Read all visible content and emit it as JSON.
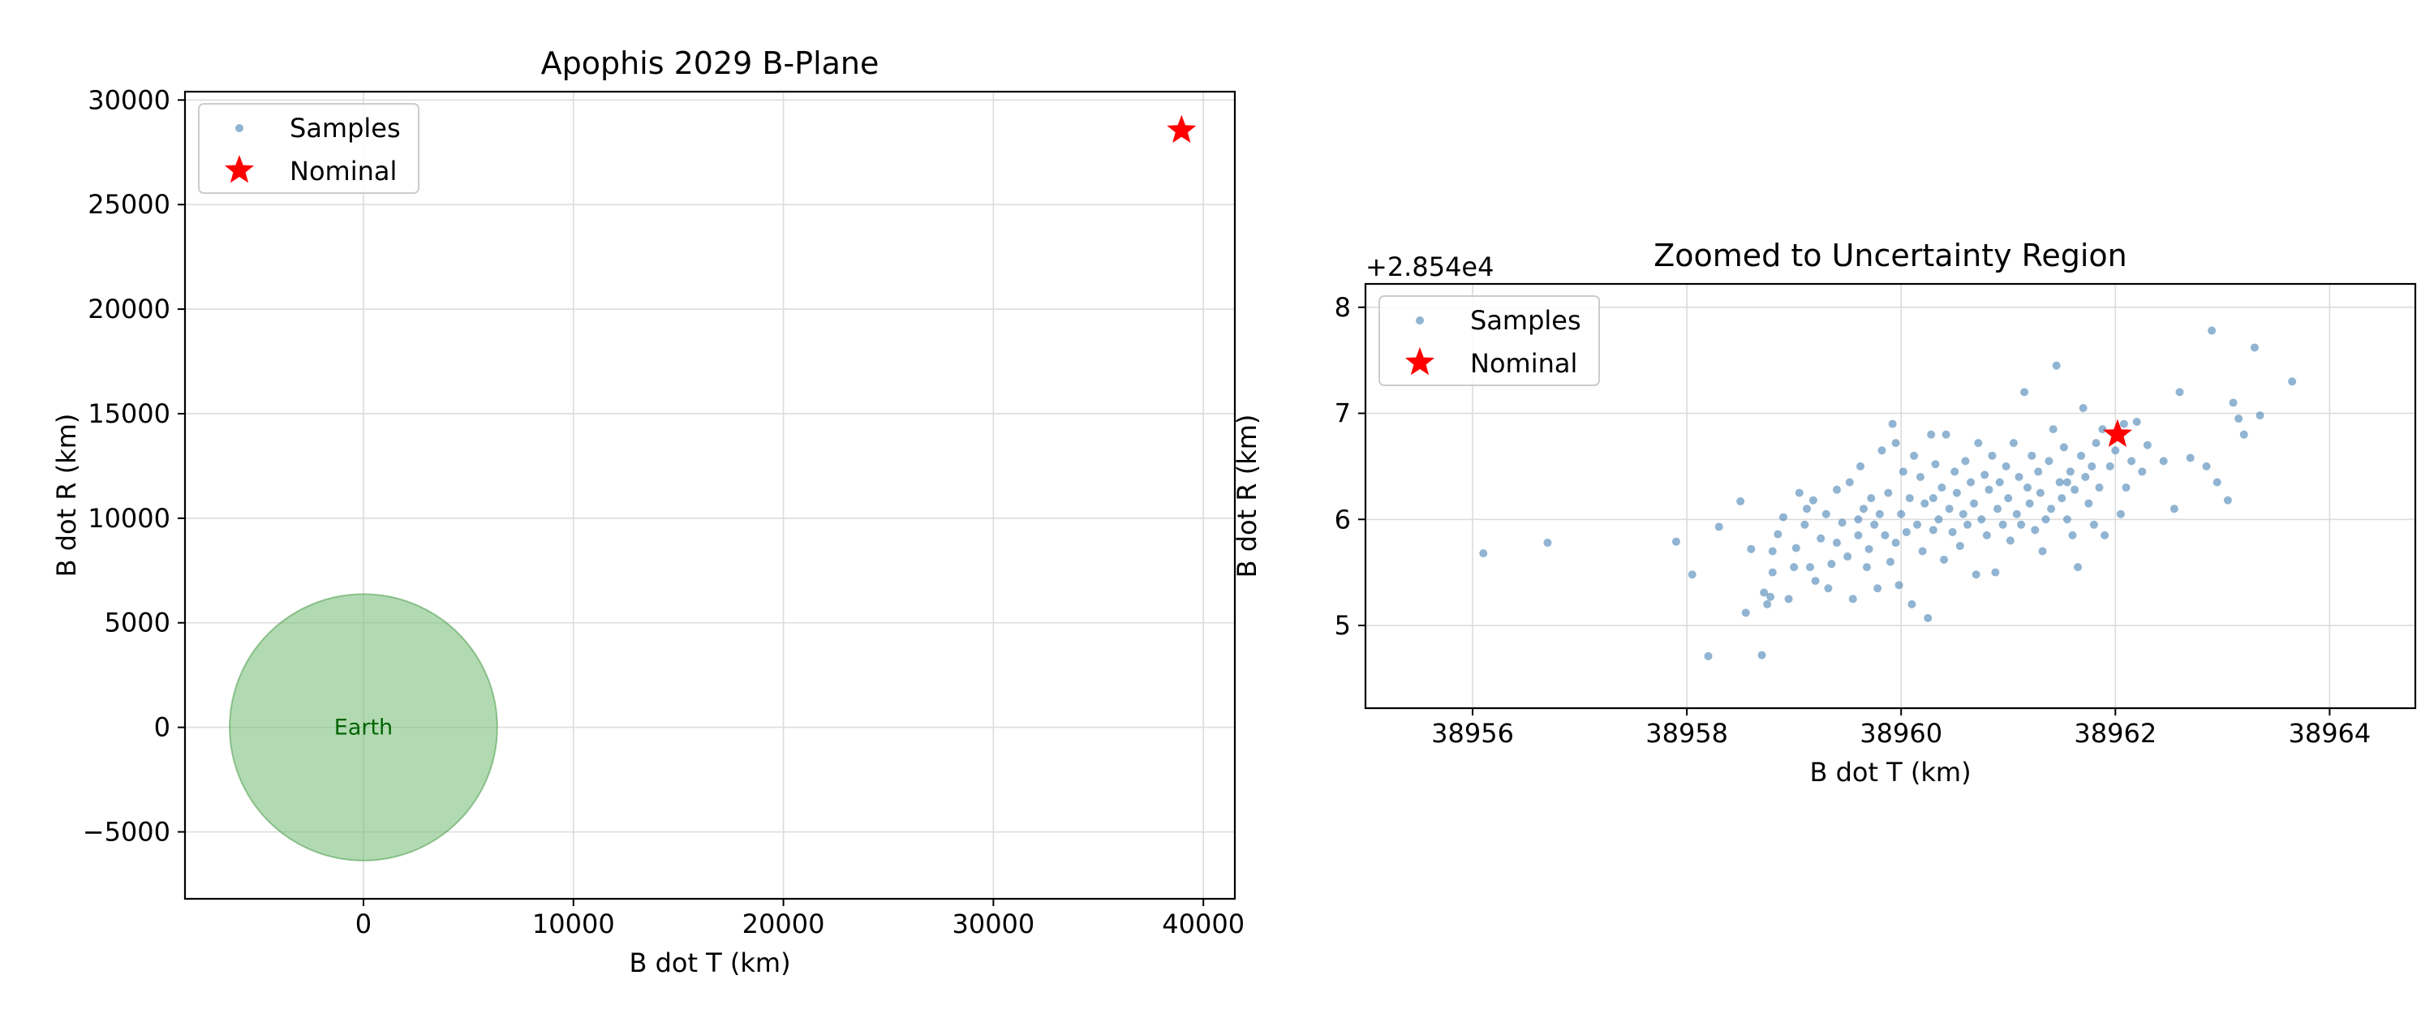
{
  "chart_data": [
    {
      "type": "scatter",
      "title": "Apophis 2029 B-Plane",
      "xlabel": "B dot T (km)",
      "ylabel": "B dot R (km)",
      "xlim": [
        -8500,
        41500
      ],
      "ylim": [
        -8200,
        30400
      ],
      "xticks": [
        0,
        10000,
        20000,
        30000,
        40000
      ],
      "xtick_labels": [
        "0",
        "10000",
        "20000",
        "30000",
        "40000"
      ],
      "yticks": [
        -5000,
        0,
        5000,
        10000,
        15000,
        20000,
        25000,
        30000
      ],
      "ytick_labels": [
        "−5000",
        "0",
        "5000",
        "10000",
        "15000",
        "20000",
        "25000",
        "30000"
      ],
      "grid": true,
      "legend_position": "upper-left",
      "legend": [
        "Samples",
        "Nominal"
      ],
      "earth": {
        "center": [
          0,
          0
        ],
        "radius": 6371,
        "label": "Earth",
        "fill": "#7fc27f",
        "edge": "#2e8b2e",
        "label_color": "#006400"
      },
      "nominal": {
        "x": 38962.0,
        "y": 28546.8,
        "color": "#ff0000"
      },
      "samples_color": "#4682b4"
    },
    {
      "type": "scatter",
      "title": "Zoomed to Uncertainty Region",
      "xlabel": "B dot T (km)",
      "ylabel": "B dot R (km)",
      "y_offset_label": "+2.854e4",
      "xlim": [
        38955.0,
        38964.8
      ],
      "ylim": [
        4.22,
        8.22
      ],
      "xticks": [
        38956,
        38958,
        38960,
        38962,
        38964
      ],
      "xtick_labels": [
        "38956",
        "38958",
        "38960",
        "38962",
        "38964"
      ],
      "yticks": [
        5,
        6,
        7,
        8
      ],
      "ytick_labels": [
        "5",
        "6",
        "7",
        "8"
      ],
      "grid": true,
      "legend_position": "upper-left",
      "legend": [
        "Samples",
        "Nominal"
      ],
      "nominal": {
        "x": 38962.02,
        "y": 6.8,
        "color": "#ff0000"
      },
      "samples_color": "#4682b4",
      "samples": [
        [
          38956.1,
          5.68
        ],
        [
          38956.7,
          5.78
        ],
        [
          38957.9,
          5.79
        ],
        [
          38958.05,
          5.48
        ],
        [
          38958.2,
          4.71
        ],
        [
          38958.3,
          5.93
        ],
        [
          38958.5,
          6.17
        ],
        [
          38958.55,
          5.12
        ],
        [
          38958.6,
          5.72
        ],
        [
          38958.7,
          4.72
        ],
        [
          38958.72,
          5.31
        ],
        [
          38958.75,
          5.2
        ],
        [
          38958.78,
          5.27
        ],
        [
          38958.8,
          5.5
        ],
        [
          38958.8,
          5.7
        ],
        [
          38958.85,
          5.86
        ],
        [
          38958.9,
          6.02
        ],
        [
          38958.95,
          5.25
        ],
        [
          38959.0,
          5.55
        ],
        [
          38959.02,
          5.73
        ],
        [
          38959.05,
          6.25
        ],
        [
          38959.1,
          5.95
        ],
        [
          38959.12,
          6.1
        ],
        [
          38959.15,
          5.55
        ],
        [
          38959.18,
          6.18
        ],
        [
          38959.2,
          5.42
        ],
        [
          38959.25,
          5.82
        ],
        [
          38959.3,
          6.05
        ],
        [
          38959.32,
          5.35
        ],
        [
          38959.35,
          5.58
        ],
        [
          38959.4,
          5.78
        ],
        [
          38959.4,
          6.28
        ],
        [
          38959.45,
          5.97
        ],
        [
          38959.5,
          5.65
        ],
        [
          38959.52,
          6.35
        ],
        [
          38959.55,
          5.25
        ],
        [
          38959.6,
          5.85
        ],
        [
          38959.62,
          6.5
        ],
        [
          38959.65,
          6.1
        ],
        [
          38959.68,
          5.55
        ],
        [
          38959.7,
          5.72
        ],
        [
          38959.72,
          6.2
        ],
        [
          38959.75,
          5.95
        ],
        [
          38959.78,
          5.35
        ],
        [
          38959.8,
          6.05
        ],
        [
          38959.82,
          6.65
        ],
        [
          38959.85,
          5.85
        ],
        [
          38959.88,
          6.25
        ],
        [
          38959.9,
          5.6
        ],
        [
          38959.92,
          6.9
        ],
        [
          38959.95,
          6.72
        ],
        [
          38959.95,
          5.78
        ],
        [
          38959.98,
          5.38
        ],
        [
          38960.0,
          6.05
        ],
        [
          38960.02,
          6.45
        ],
        [
          38960.05,
          5.88
        ],
        [
          38960.08,
          6.2
        ],
        [
          38960.1,
          5.2
        ],
        [
          38960.12,
          6.6
        ],
        [
          38960.15,
          5.95
        ],
        [
          38960.18,
          6.4
        ],
        [
          38960.2,
          5.7
        ],
        [
          38960.22,
          6.15
        ],
        [
          38960.25,
          5.07
        ],
        [
          38960.28,
          6.8
        ],
        [
          38960.3,
          5.9
        ],
        [
          38960.32,
          6.52
        ],
        [
          38960.35,
          6.0
        ],
        [
          38960.38,
          6.3
        ],
        [
          38960.4,
          5.62
        ],
        [
          38960.42,
          6.8
        ],
        [
          38960.45,
          6.1
        ],
        [
          38960.48,
          5.88
        ],
        [
          38960.5,
          6.45
        ],
        [
          38960.52,
          6.25
        ],
        [
          38960.55,
          5.75
        ],
        [
          38960.58,
          6.05
        ],
        [
          38960.6,
          6.55
        ],
        [
          38960.62,
          5.95
        ],
        [
          38960.65,
          6.35
        ],
        [
          38960.68,
          6.15
        ],
        [
          38960.7,
          5.48
        ],
        [
          38960.72,
          6.72
        ],
        [
          38960.75,
          6.0
        ],
        [
          38960.78,
          6.42
        ],
        [
          38960.8,
          5.85
        ],
        [
          38960.82,
          6.28
        ],
        [
          38960.85,
          6.6
        ],
        [
          38960.88,
          5.5
        ],
        [
          38960.9,
          6.1
        ],
        [
          38960.92,
          6.35
        ],
        [
          38960.95,
          5.95
        ],
        [
          38960.98,
          6.5
        ],
        [
          38961.0,
          6.2
        ],
        [
          38961.02,
          5.8
        ],
        [
          38961.05,
          6.72
        ],
        [
          38961.08,
          6.05
        ],
        [
          38961.1,
          6.4
        ],
        [
          38961.12,
          5.95
        ],
        [
          38961.15,
          7.2
        ],
        [
          38961.18,
          6.3
        ],
        [
          38961.2,
          6.15
        ],
        [
          38961.22,
          6.6
        ],
        [
          38961.25,
          5.9
        ],
        [
          38961.28,
          6.45
        ],
        [
          38961.3,
          6.25
        ],
        [
          38961.32,
          5.7
        ],
        [
          38961.35,
          6.0
        ],
        [
          38961.38,
          6.55
        ],
        [
          38961.4,
          6.1
        ],
        [
          38961.42,
          6.85
        ],
        [
          38961.45,
          7.45
        ],
        [
          38961.48,
          6.35
        ],
        [
          38961.5,
          6.2
        ],
        [
          38961.52,
          6.68
        ],
        [
          38961.55,
          6.0
        ],
        [
          38961.58,
          6.45
        ],
        [
          38961.6,
          5.85
        ],
        [
          38961.62,
          6.28
        ],
        [
          38961.65,
          5.55
        ],
        [
          38961.68,
          6.6
        ],
        [
          38961.7,
          7.05
        ],
        [
          38961.72,
          6.4
        ],
        [
          38961.75,
          6.15
        ],
        [
          38961.78,
          6.5
        ],
        [
          38961.8,
          5.95
        ],
        [
          38961.82,
          6.72
        ],
        [
          38961.85,
          6.3
        ],
        [
          38961.88,
          6.85
        ],
        [
          38961.9,
          5.85
        ],
        [
          38961.95,
          6.5
        ],
        [
          38962.0,
          6.65
        ],
        [
          38962.05,
          6.05
        ],
        [
          38962.08,
          6.9
        ],
        [
          38962.1,
          6.3
        ],
        [
          38962.15,
          6.55
        ],
        [
          38962.2,
          6.92
        ],
        [
          38962.25,
          6.45
        ],
        [
          38962.3,
          6.7
        ],
        [
          38962.45,
          6.55
        ],
        [
          38962.55,
          6.1
        ],
        [
          38962.6,
          7.2
        ],
        [
          38962.7,
          6.58
        ],
        [
          38962.85,
          6.5
        ],
        [
          38962.9,
          7.78
        ],
        [
          38962.95,
          6.35
        ],
        [
          38963.05,
          6.18
        ],
        [
          38963.1,
          7.1
        ],
        [
          38963.15,
          6.95
        ],
        [
          38963.2,
          6.8
        ],
        [
          38963.3,
          7.62
        ],
        [
          38963.35,
          6.98
        ],
        [
          38963.65,
          7.3
        ],
        [
          38961.55,
          6.35
        ],
        [
          38960.3,
          6.2
        ],
        [
          38959.6,
          6.0
        ]
      ]
    }
  ]
}
